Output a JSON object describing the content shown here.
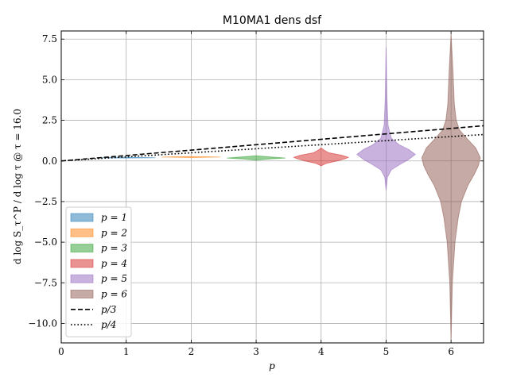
{
  "chart_data": {
    "type": "violin",
    "title": "M10MA1 dens dsf",
    "xlabel": "p",
    "ylabel": "d log S_τ^P / d log τ @ τ = 16.0",
    "xlim": [
      0,
      6.5
    ],
    "ylim": [
      -11.2,
      8.0
    ],
    "xticks": [
      0,
      1,
      2,
      3,
      4,
      5,
      6
    ],
    "yticks": [
      -10.0,
      -7.5,
      -5.0,
      -2.5,
      0.0,
      2.5,
      5.0,
      7.5
    ],
    "xtick_labels": [
      "0",
      "1",
      "2",
      "3",
      "4",
      "5",
      "6"
    ],
    "ytick_labels": [
      "−10.0",
      "−7.5",
      "−5.0",
      "−2.5",
      "0.0",
      "2.5",
      "5.0",
      "7.5"
    ],
    "grid": true,
    "legend_position": "lower-left",
    "violins": [
      {
        "label": "p = 1",
        "p": 1,
        "color": "#1f77b4",
        "profile": [
          [
            0.175,
            0.0
          ],
          [
            0.19,
            0.3
          ],
          [
            0.2,
            0.45
          ],
          [
            0.21,
            0.3
          ],
          [
            0.225,
            0.0
          ]
        ]
      },
      {
        "label": "p = 2",
        "p": 2,
        "color": "#ff7f0e",
        "profile": [
          [
            0.21,
            0.0
          ],
          [
            0.225,
            0.25
          ],
          [
            0.24,
            0.45
          ],
          [
            0.255,
            0.25
          ],
          [
            0.27,
            0.0
          ]
        ]
      },
      {
        "label": "p = 3",
        "p": 3,
        "color": "#2ca02c",
        "profile": [
          [
            0.05,
            0.0
          ],
          [
            0.12,
            0.2
          ],
          [
            0.18,
            0.45
          ],
          [
            0.24,
            0.25
          ],
          [
            0.32,
            0.0
          ]
        ]
      },
      {
        "label": "p = 4",
        "p": 4,
        "color": "#d62728",
        "profile": [
          [
            -0.3,
            0.0
          ],
          [
            -0.15,
            0.08
          ],
          [
            0.0,
            0.25
          ],
          [
            0.15,
            0.38
          ],
          [
            0.22,
            0.42
          ],
          [
            0.35,
            0.32
          ],
          [
            0.5,
            0.12
          ],
          [
            0.65,
            0.05
          ],
          [
            0.8,
            0.0
          ]
        ]
      },
      {
        "label": "p = 5",
        "p": 5,
        "color": "#9467bd",
        "profile": [
          [
            -1.8,
            0.0
          ],
          [
            -1.0,
            0.02
          ],
          [
            -0.55,
            0.08
          ],
          [
            -0.25,
            0.2
          ],
          [
            0.1,
            0.35
          ],
          [
            0.4,
            0.45
          ],
          [
            0.7,
            0.35
          ],
          [
            1.0,
            0.2
          ],
          [
            1.4,
            0.08
          ],
          [
            2.2,
            0.03
          ],
          [
            4.0,
            0.012
          ],
          [
            7.0,
            0.0
          ]
        ]
      },
      {
        "label": "p = 6",
        "p": 6,
        "color": "#8c564b",
        "profile": [
          [
            -11.0,
            0.0
          ],
          [
            -7.5,
            0.02
          ],
          [
            -5.0,
            0.06
          ],
          [
            -3.5,
            0.11
          ],
          [
            -2.5,
            0.16
          ],
          [
            -1.5,
            0.26
          ],
          [
            -0.8,
            0.36
          ],
          [
            -0.3,
            0.42
          ],
          [
            0.2,
            0.45
          ],
          [
            0.8,
            0.38
          ],
          [
            1.4,
            0.24
          ],
          [
            1.9,
            0.13
          ],
          [
            2.5,
            0.08
          ],
          [
            3.5,
            0.05
          ],
          [
            5.5,
            0.03
          ],
          [
            7.8,
            0.0
          ]
        ]
      }
    ],
    "lines": [
      {
        "label": "p/3",
        "style": "dashed",
        "slope": 0.3333333
      },
      {
        "label": "p/4",
        "style": "dotted",
        "slope": 0.25
      }
    ]
  }
}
